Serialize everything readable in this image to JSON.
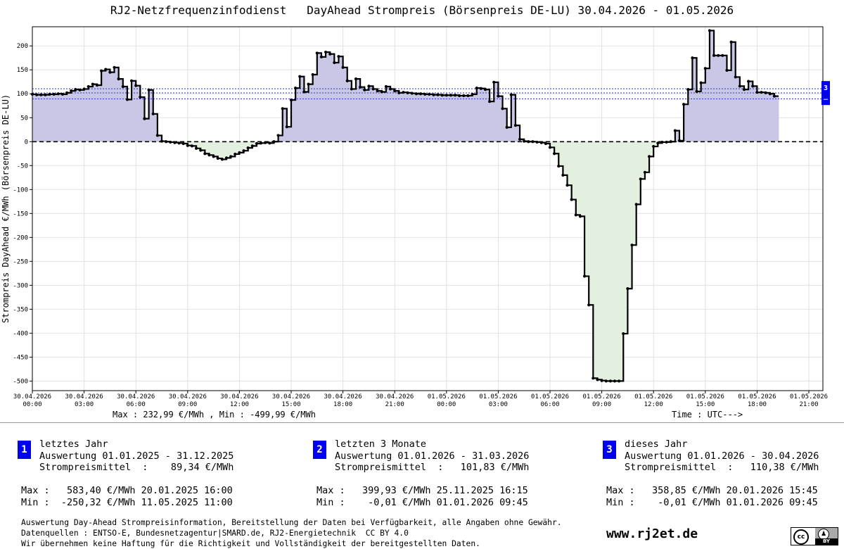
{
  "chart_data": {
    "type": "line",
    "title": "RJ2-Netzfrequenzinfodienst   DayAhead Strompreis (Börsenpreis DE-LU) 30.04.2026 - 01.05.2026",
    "ylabel": "Strompreis DayAhead €/MWh (Börsenpreis DE-LU)",
    "xlabel": "Time : UTC--->",
    "ylim": [
      -520,
      240
    ],
    "yticks": [
      200,
      150,
      100,
      50,
      0,
      -50,
      -100,
      -150,
      -200,
      -250,
      -300,
      -350,
      -400,
      -450,
      -500
    ],
    "xtick_labels": [
      [
        "30.04.2026",
        "00:00"
      ],
      [
        "30.04.2026",
        "03:00"
      ],
      [
        "30.04.2026",
        "06:00"
      ],
      [
        "30.04.2026",
        "09:00"
      ],
      [
        "30.04.2026",
        "12:00"
      ],
      [
        "30.04.2026",
        "15:00"
      ],
      [
        "30.04.2026",
        "18:00"
      ],
      [
        "30.04.2026",
        "21:00"
      ],
      [
        "01.05.2026",
        "00:00"
      ],
      [
        "01.05.2026",
        "03:00"
      ],
      [
        "01.05.2026",
        "06:00"
      ],
      [
        "01.05.2026",
        "09:00"
      ],
      [
        "01.05.2026",
        "12:00"
      ],
      [
        "01.05.2026",
        "15:00"
      ],
      [
        "01.05.2026",
        "18:00"
      ],
      [
        "01.05.2026",
        "21:00"
      ]
    ],
    "interval_minutes": 15,
    "mean_lines": [
      89.34,
      101.83,
      110.38
    ],
    "grid": true,
    "series": [
      {
        "values": [
          99,
          98,
          98,
          98,
          99,
          99,
          100,
          99,
          102,
          106,
          109,
          108,
          110,
          115,
          120,
          118,
          148,
          151,
          145,
          155,
          131,
          115,
          88,
          127,
          117,
          93,
          48,
          108,
          58,
          13,
          1,
          0,
          -1,
          -2,
          -3,
          -4,
          -8,
          -9,
          -14,
          -18,
          -25,
          -28,
          -31,
          -35,
          -37,
          -34,
          -31,
          -26,
          -23,
          -19,
          -13,
          -9,
          -4,
          -3,
          -2,
          -3,
          0,
          13,
          69,
          31,
          87,
          112,
          136,
          104,
          120,
          140,
          185,
          177,
          187,
          183,
          165,
          178,
          155,
          127,
          110,
          131,
          114,
          108,
          116,
          110,
          106,
          104,
          115,
          110,
          106,
          102,
          103,
          102,
          101,
          100,
          100,
          99,
          99,
          98,
          98,
          97,
          97,
          97,
          97,
          96,
          96,
          96,
          99,
          112,
          111,
          109,
          84,
          124,
          95,
          69,
          30,
          98,
          34,
          5,
          1,
          0,
          0,
          -1,
          -2,
          -4,
          -12,
          -25,
          -51,
          -70,
          -91,
          -121,
          -153,
          -156,
          -281,
          -341,
          -494,
          -497,
          -499,
          -500,
          -500,
          -500,
          -500,
          -401,
          -307,
          -216,
          -131,
          -78,
          -64,
          -31,
          -10,
          -3,
          -1,
          -1,
          0,
          23,
          2,
          78,
          109,
          175,
          105,
          123,
          153,
          232,
          180,
          180,
          180,
          149,
          208,
          135,
          116,
          109,
          126,
          116,
          103,
          103,
          102,
          100,
          95
        ]
      }
    ],
    "axis_stats": "Max : 232,99 €/MWh , Min : -499,99 €/MWh",
    "right_marker_label": "3",
    "right_marker_value": 110.38
  },
  "stats_panels": [
    {
      "badge": "1",
      "heading": "letztes Jahr",
      "range": "Auswertung 01.01.2025 - 31.12.2025",
      "mean": "Strompreismittel  :    89,34 €/MWh",
      "max": "Max :   583,40 €/MWh 20.01.2025 16:00",
      "min": "Min :  -250,32 €/MWh 11.05.2025 11:00"
    },
    {
      "badge": "2",
      "heading": "letzten 3 Monate",
      "range": "Auswertung 01.01.2026 - 31.03.2026",
      "mean": "Strompreismittel  :   101,83 €/MWh",
      "max": "Max :   399,93 €/MWh 25.11.2025 16:15",
      "min": "Min :    -0,01 €/MWh 01.01.2026 09:45"
    },
    {
      "badge": "3",
      "heading": "dieses Jahr",
      "range": "Auswertung 01.01.2026 - 30.04.2026",
      "mean": "Strompreismittel  :   110,38 €/MWh",
      "max": "Max :   358,85 €/MWh 20.01.2026 15:45",
      "min": "Min :    -0,01 €/MWh 01.01.2026 09:45"
    }
  ],
  "footer": {
    "line1": "Auswertung Day-Ahead Strompreisinformation, Bereitstellung der Daten bei Verfügbarkeit, alle Angaben ohne Gewähr.",
    "line2": "Datenquellen : ENTSO-E, Bundesnetzagentur|SMARD.de, RJ2-Energietechnik  CC BY 4.0",
    "line3": "Wir übernehmen keine Haftung für die Richtigkeit und Vollständigkeit der bereitgestellten Daten.",
    "website": "www.rj2et.de",
    "license_cc": "cc",
    "license_by_icon": "person-icon",
    "license_by": "BY"
  },
  "colors": {
    "positive_fill": "#c8c8e6",
    "negative_fill": "#e3f0df",
    "line": "#000000",
    "mean_line": "#3333bb",
    "badge": "#0000ee"
  }
}
